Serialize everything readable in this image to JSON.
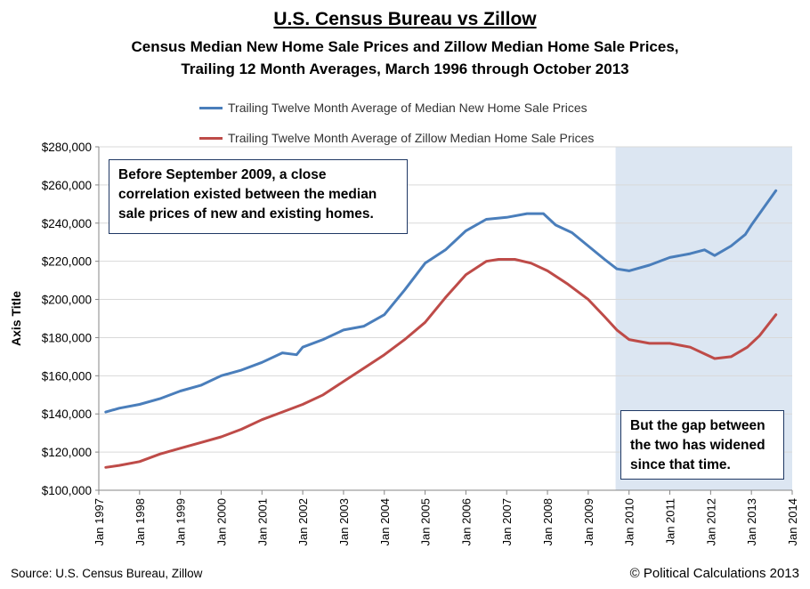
{
  "header": {
    "title": "U.S. Census Bureau vs Zillow",
    "subtitle_line1": "Census Median New Home Sale Prices and Zillow Median Home Sale Prices,",
    "subtitle_line2": "Trailing 12 Month Averages, March 1996 through October 2013"
  },
  "footer": {
    "source": "Source: U.S. Census Bureau, Zillow",
    "copyright": "© Political Calculations 2013"
  },
  "annotations": {
    "note1": "Before September 2009, a close correlation existed between the median sale prices of new and existing homes.",
    "note2": "But the gap between the two has widened since that time."
  },
  "colors": {
    "new_home": "#4a7ebb",
    "zillow": "#be4b48",
    "shade": "#dce6f2",
    "grid": "#d9d9d9"
  },
  "chart_data": {
    "type": "line",
    "title": "U.S. Census Bureau vs Zillow",
    "xlabel": "",
    "ylabel": "Axis Title",
    "xlim": [
      1997,
      2014
    ],
    "ylim": [
      100000,
      280000
    ],
    "yticks": [
      100000,
      120000,
      140000,
      160000,
      180000,
      200000,
      220000,
      240000,
      260000,
      280000
    ],
    "ytick_labels": [
      "$100,000",
      "$120,000",
      "$140,000",
      "$160,000",
      "$180,000",
      "$200,000",
      "$220,000",
      "$240,000",
      "$260,000",
      "$280,000"
    ],
    "xticks": [
      1997,
      1998,
      1999,
      2000,
      2001,
      2002,
      2003,
      2004,
      2005,
      2006,
      2007,
      2008,
      2009,
      2010,
      2011,
      2012,
      2013,
      2014
    ],
    "xtick_labels": [
      "Jan 1997",
      "Jan 1998",
      "Jan 1999",
      "Jan 2000",
      "Jan 2001",
      "Jan 2002",
      "Jan 2003",
      "Jan 2004",
      "Jan 2005",
      "Jan 2006",
      "Jan 2007",
      "Jan 2008",
      "Jan 2009",
      "Jan 2010",
      "Jan 2011",
      "Jan 2012",
      "Jan 2013",
      "Jan 2014"
    ],
    "shaded_region": [
      2009.67,
      2014
    ],
    "grid": "horizontal",
    "legend": "top",
    "series": [
      {
        "name": "Trailing Twelve Month Average of Median New Home Sale Prices",
        "x": [
          1997.17,
          1997.5,
          1998.0,
          1998.5,
          1999.0,
          1999.5,
          2000.0,
          2000.5,
          2001.0,
          2001.5,
          2001.85,
          2002.0,
          2002.5,
          2003.0,
          2003.5,
          2004.0,
          2004.5,
          2005.0,
          2005.5,
          2006.0,
          2006.5,
          2007.0,
          2007.5,
          2007.9,
          2008.2,
          2008.6,
          2009.0,
          2009.4,
          2009.7,
          2010.0,
          2010.5,
          2011.0,
          2011.5,
          2011.85,
          2012.1,
          2012.5,
          2012.85,
          2013.0,
          2013.3,
          2013.6
        ],
        "values": [
          141000,
          143000,
          145000,
          148000,
          152000,
          155000,
          160000,
          163000,
          167000,
          172000,
          171000,
          175000,
          179000,
          184000,
          186000,
          192000,
          205000,
          219000,
          226000,
          236000,
          242000,
          243000,
          245000,
          245000,
          239000,
          235000,
          228000,
          221000,
          216000,
          215000,
          218000,
          222000,
          224000,
          226000,
          223000,
          228000,
          234000,
          239000,
          248000,
          257000
        ]
      },
      {
        "name": "Trailing Twelve Month Average of Zillow Median Home Sale Prices",
        "x": [
          1997.17,
          1997.5,
          1998.0,
          1998.5,
          1999.0,
          1999.5,
          2000.0,
          2000.5,
          2001.0,
          2001.5,
          2002.0,
          2002.5,
          2003.0,
          2003.5,
          2004.0,
          2004.5,
          2005.0,
          2005.5,
          2006.0,
          2006.5,
          2006.8,
          2007.2,
          2007.6,
          2008.0,
          2008.5,
          2009.0,
          2009.4,
          2009.7,
          2010.0,
          2010.5,
          2011.0,
          2011.5,
          2011.8,
          2012.1,
          2012.5,
          2012.9,
          2013.2,
          2013.6
        ],
        "values": [
          112000,
          113000,
          115000,
          119000,
          122000,
          125000,
          128000,
          132000,
          137000,
          141000,
          145000,
          150000,
          157000,
          164000,
          171000,
          179000,
          188000,
          201000,
          213000,
          220000,
          221000,
          221000,
          219000,
          215000,
          208000,
          200000,
          191000,
          184000,
          179000,
          177000,
          177000,
          175000,
          172000,
          169000,
          170000,
          175000,
          181000,
          192000
        ]
      }
    ]
  }
}
